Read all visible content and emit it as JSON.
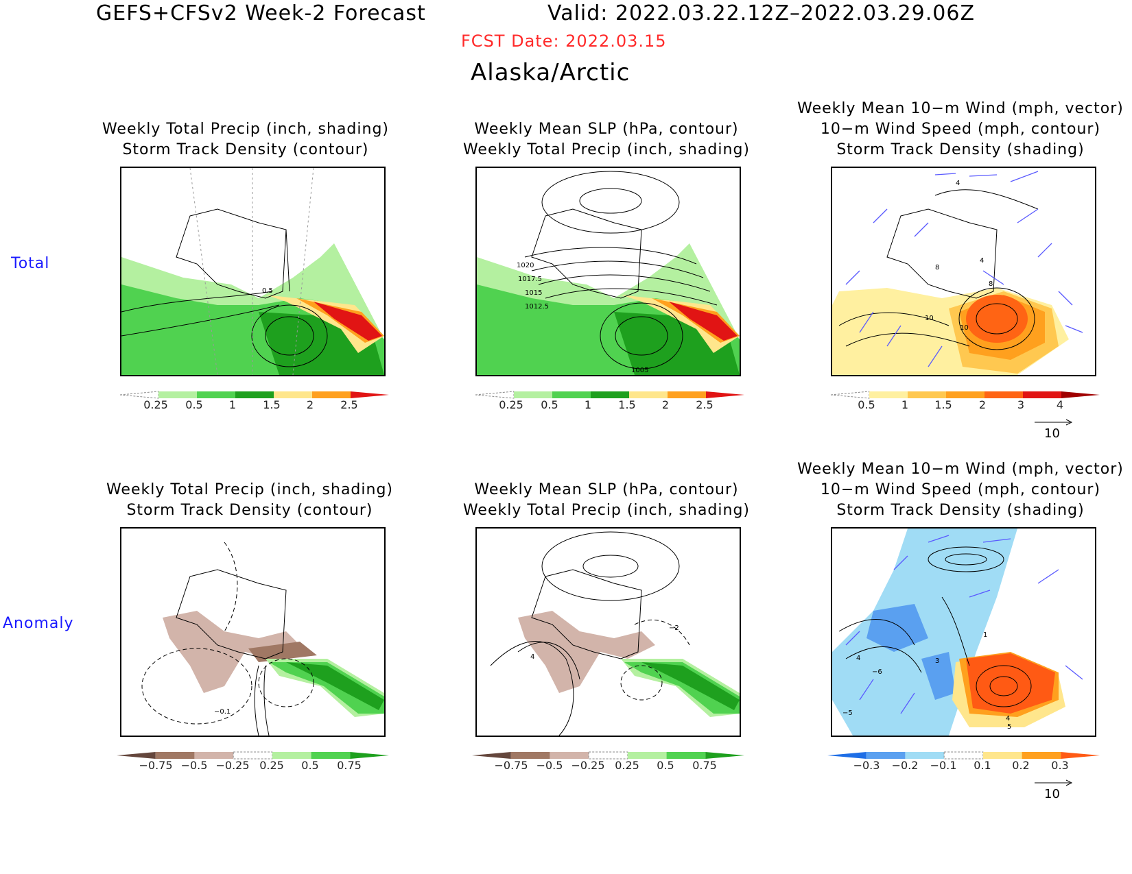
{
  "header": {
    "title": "GEFS+CFSv2 Week-2 Forecast",
    "valid": "Valid: 2022.03.22.12Z–2022.03.29.06Z",
    "fcst_date": "FCST Date: 2022.03.15",
    "region": "Alaska/Arctic",
    "fcst_color": "#ff2a2a"
  },
  "rows": [
    {
      "label": "Total"
    },
    {
      "label": "Anomaly"
    }
  ],
  "panels": [
    {
      "title": [
        "Weekly Total Precip (inch, shading)",
        "Storm Track Density (contour)"
      ],
      "ticks": [
        "0.25",
        "0.5",
        "1",
        "1.5",
        "2",
        "2.5"
      ],
      "contour_labels": [
        "0.5"
      ]
    },
    {
      "title": [
        "Weekly Mean SLP (hPa, contour)",
        "Weekly Total Precip (inch, shading)"
      ],
      "ticks": [
        "0.25",
        "0.5",
        "1",
        "1.5",
        "2",
        "2.5"
      ],
      "contour_labels": [
        "1020",
        "1017.5",
        "1015",
        "1012.5",
        "1005"
      ]
    },
    {
      "title": [
        "Weekly Mean 10−m Wind (mph, vector)",
        "10−m Wind Speed (mph, contour)",
        "Storm Track Density (shading)"
      ],
      "ticks": [
        "0.5",
        "1",
        "1.5",
        "2",
        "3",
        "4"
      ],
      "contour_labels": [
        "4",
        "8",
        "4",
        "8",
        "10",
        "10"
      ],
      "vector_ref": "10"
    },
    {
      "title": [
        "Weekly Total Precip (inch, shading)",
        "Storm Track Density (contour)"
      ],
      "ticks": [
        "−0.75",
        "−0.5",
        "−0.25",
        "0.25",
        "0.5",
        "0.75"
      ],
      "contour_labels": [
        "−0.1"
      ]
    },
    {
      "title": [
        "Weekly Mean SLP (hPa, contour)",
        "Weekly Total Precip (inch, shading)"
      ],
      "ticks": [
        "−0.75",
        "−0.5",
        "−0.25",
        "0.25",
        "0.5",
        "0.75"
      ],
      "contour_labels": [
        "4",
        "−2"
      ]
    },
    {
      "title": [
        "Weekly Mean 10−m Wind (mph, vector)",
        "10−m Wind Speed (mph, contour)",
        "Storm Track Density (shading)"
      ],
      "ticks": [
        "−0.3",
        "−0.2",
        "−0.1",
        "0.1",
        "0.2",
        "0.3"
      ],
      "contour_labels": [
        "4",
        "−6",
        "3",
        "1",
        "−5",
        "4",
        "5"
      ],
      "vector_ref": "10"
    }
  ],
  "colorbars": {
    "precip_total": [
      "#ffffff",
      "#b4f0a0",
      "#50d250",
      "#1ea01e",
      "#ffe68c",
      "#ffa01e",
      "#e11414"
    ],
    "storm_density": [
      "#ffffff",
      "#fff0a0",
      "#ffc850",
      "#ffa01e",
      "#ff6414",
      "#e11414",
      "#a00000"
    ],
    "precip_anom": [
      "#64463c",
      "#a07864",
      "#d2b4aa",
      "#ffffff",
      "#b4f0a0",
      "#50d250",
      "#1ea01e"
    ],
    "storm_anom": [
      "#1e6ee6",
      "#5aa0f0",
      "#a0dcf5",
      "#ffffff",
      "#ffe68c",
      "#ffa01e",
      "#ff5a14"
    ]
  }
}
